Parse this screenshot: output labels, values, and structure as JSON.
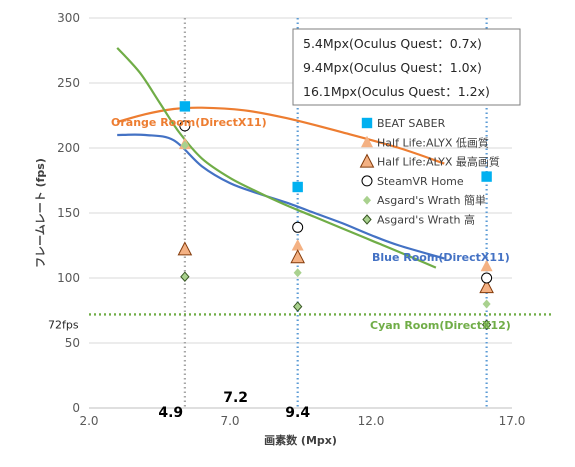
{
  "chart_data": {
    "type": "scatter",
    "ylabel": "フレームレート (fps)",
    "xlabel": "画素数 (Mpx)",
    "xlim": [
      2.0,
      17.0
    ],
    "ylim": [
      0,
      300
    ],
    "xticks": [
      {
        "v": 2.0,
        "label": "2.0"
      },
      {
        "v": 7.0,
        "label": "7.0"
      },
      {
        "v": 12.0,
        "label": "12.0"
      },
      {
        "v": 17.0,
        "label": "17.0"
      }
    ],
    "yticks": [
      0,
      50,
      100,
      150,
      200,
      250,
      300
    ],
    "grid": "horizontal",
    "notes": [
      "5.4Mpx(Oculus Quest：0.7x)",
      "9.4Mpx(Oculus Quest：1.0x)",
      "16.1Mpx(Oculus Quest：1.2x)"
    ],
    "vlines": [
      {
        "x": 5.4,
        "color": "#a6a6a6"
      },
      {
        "x": 9.4,
        "color": "#5b9bd5"
      },
      {
        "x": 16.1,
        "color": "#5b9bd5"
      }
    ],
    "hline": {
      "y": 72,
      "label": "72fps",
      "color": "#70ad47"
    },
    "bold_labels": [
      {
        "x": 4.9,
        "text": "4.9",
        "row": "low"
      },
      {
        "x": 7.2,
        "text": "7.2",
        "row": "high"
      },
      {
        "x": 9.4,
        "text": "9.4",
        "row": "low"
      }
    ],
    "curves": [
      {
        "name": "Orange Room(DirectX11)",
        "color": "#ed7d31",
        "points": [
          [
            3.0,
            220
          ],
          [
            4.0,
            226
          ],
          [
            5.0,
            230
          ],
          [
            6.0,
            231
          ],
          [
            7.5,
            229
          ],
          [
            9.0,
            223
          ],
          [
            11.0,
            212
          ],
          [
            13.0,
            200
          ],
          [
            14.6,
            188
          ]
        ]
      },
      {
        "name": "Blue Room(DirectX11)",
        "color": "#4472c4",
        "points": [
          [
            3.0,
            210
          ],
          [
            4.0,
            210
          ],
          [
            5.0,
            206
          ],
          [
            6.0,
            186
          ],
          [
            7.0,
            173
          ],
          [
            8.0,
            165
          ],
          [
            9.0,
            158
          ],
          [
            10.0,
            150
          ],
          [
            11.0,
            142
          ],
          [
            12.0,
            133
          ],
          [
            13.0,
            125
          ],
          [
            14.6,
            115
          ]
        ]
      },
      {
        "name": "Cyan Room(DirectX12)",
        "color": "#70ad47",
        "points": [
          [
            3.0,
            277
          ],
          [
            3.8,
            258
          ],
          [
            4.5,
            235
          ],
          [
            5.2,
            212
          ],
          [
            6.0,
            192
          ],
          [
            7.0,
            177
          ],
          [
            8.0,
            166
          ],
          [
            9.0,
            156
          ],
          [
            10.0,
            147
          ],
          [
            11.0,
            138
          ],
          [
            12.0,
            129
          ],
          [
            13.0,
            120
          ],
          [
            14.3,
            108
          ]
        ]
      }
    ],
    "series": [
      {
        "name": "BEAT SABER",
        "marker": "square",
        "color": "#00b0f0",
        "x": [
          5.4,
          9.4,
          16.1
        ],
        "y": [
          232,
          170,
          178
        ]
      },
      {
        "name": "Half Life:ALYX 低画質",
        "marker": "triangle",
        "color": "#f4b183",
        "x": [
          5.4,
          9.4,
          16.1
        ],
        "y": [
          203,
          125,
          109
        ]
      },
      {
        "name": "Half Life:ALYX 最高画質",
        "marker": "triangle-dark",
        "color": "#f4b183",
        "x": [
          5.4,
          9.4,
          16.1
        ],
        "y": [
          122,
          116,
          93
        ]
      },
      {
        "name": "SteamVR Home",
        "marker": "circle",
        "color": "#ffffff",
        "x": [
          5.4,
          9.4,
          16.1
        ],
        "y": [
          217,
          139,
          100
        ]
      },
      {
        "name": "Asgard's Wrath 簡単",
        "marker": "diamond",
        "color": "#a9d18e",
        "x": [
          5.4,
          9.4,
          16.1
        ],
        "y": [
          202,
          104,
          80
        ]
      },
      {
        "name": "Asgard's Wrath 高",
        "marker": "diamond-dark",
        "color": "#70ad47",
        "x": [
          5.4,
          9.4,
          16.1
        ],
        "y": [
          101,
          78,
          64
        ]
      }
    ]
  }
}
